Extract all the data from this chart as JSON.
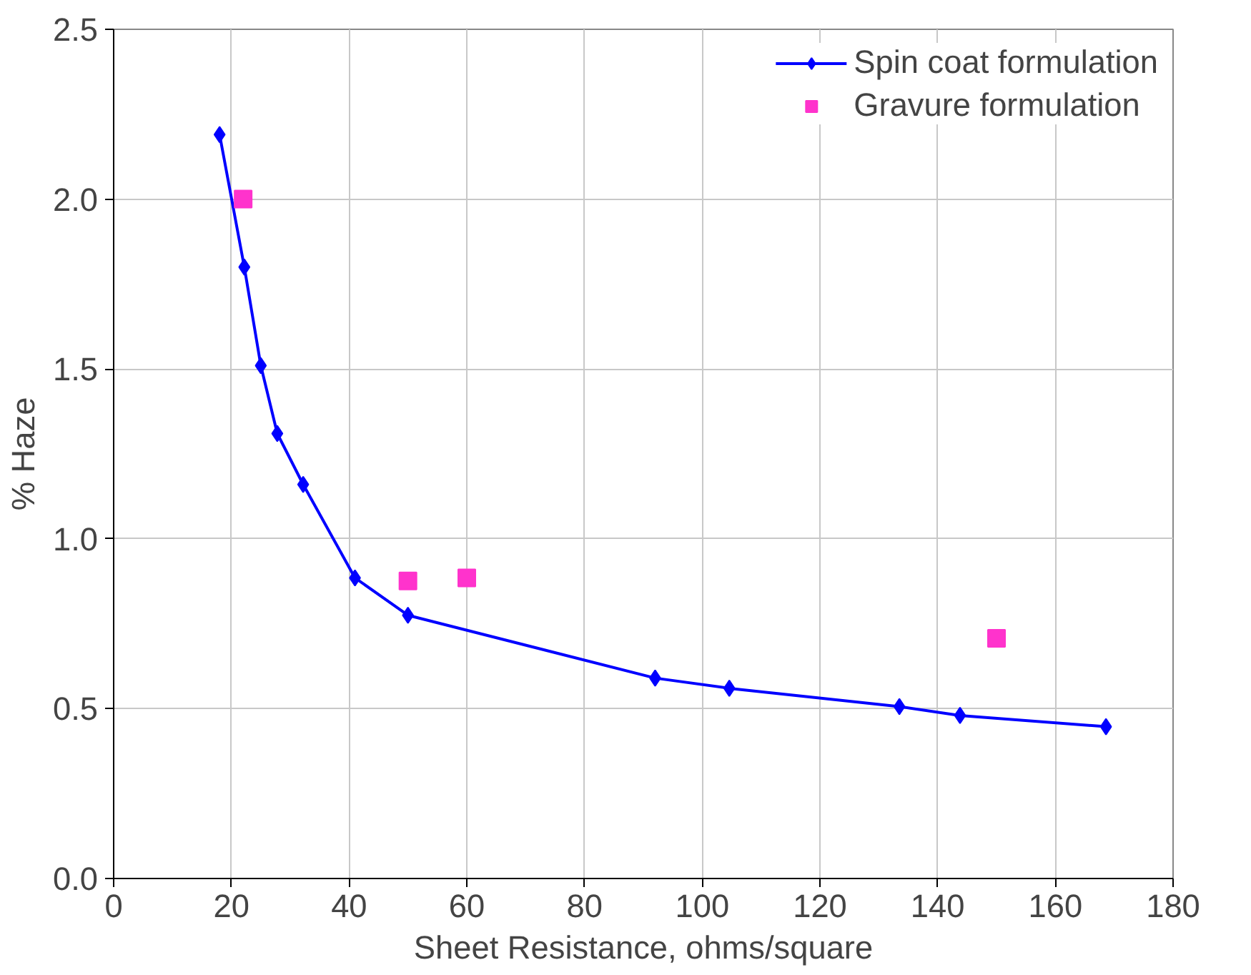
{
  "chart_data": {
    "type": "line",
    "xlabel": "Sheet Resistance, ohms/square",
    "ylabel": "% Haze",
    "xlim": [
      0,
      180
    ],
    "xticks": [
      0,
      20,
      40,
      60,
      80,
      100,
      120,
      140,
      160,
      180
    ],
    "ylim": [
      0,
      2.5
    ],
    "yticks": [
      {
        "value": 0,
        "label": "0.0"
      },
      {
        "value": 0.5,
        "label": "0.5"
      },
      {
        "value": 1,
        "label": "1.0"
      },
      {
        "value": 1.5,
        "label": "1.5"
      },
      {
        "value": 2,
        "label": "2.0"
      },
      {
        "value": 2.5,
        "label": "2.5"
      }
    ],
    "grid": true,
    "legend": "top right",
    "series": [
      {
        "name": "Spin coat formulation",
        "marker": "diamond",
        "color": "#0000ff",
        "x": [
          18,
          22.2,
          25,
          27.8,
          32.2,
          41,
          50,
          92,
          104.6,
          133.5,
          143.8,
          168.6
        ],
        "values": [
          2.19,
          1.8,
          1.51,
          1.31,
          1.16,
          0.885,
          0.775,
          0.59,
          0.56,
          0.506,
          0.48,
          0.447
        ]
      },
      {
        "name": "Gravure formulation",
        "type": "scatter",
        "marker": "square",
        "color": "#ff33cc",
        "x": [
          22,
          50,
          60,
          150
        ],
        "values": [
          2.0,
          0.876,
          0.885,
          0.707
        ]
      }
    ]
  }
}
